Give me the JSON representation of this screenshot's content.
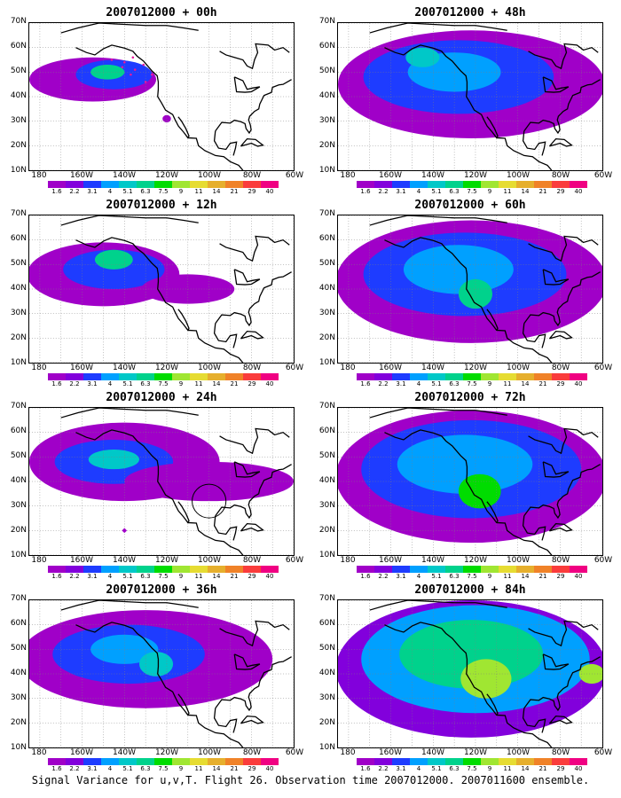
{
  "caption": "Signal Variance for u,v,T. Flight 26. Observation time 2007012000. 2007011600 ensemble.",
  "colors": {
    "land_outline": "#000000",
    "grid": "#7f7f7f",
    "circle": "#000000",
    "obs_marker": "#e8199b"
  },
  "chart_data": {
    "type": "heatmap",
    "axes": {
      "lon_ticks": [
        "180",
        "160W",
        "140W",
        "120W",
        "100W",
        "80W",
        "60W"
      ],
      "lat_ticks": [
        "10N",
        "20N",
        "30N",
        "40N",
        "50N",
        "60N",
        "70N"
      ],
      "lon_range": [
        -185,
        -60
      ],
      "lat_range": [
        10,
        70
      ],
      "grid": true
    },
    "colorbar": {
      "levels": [
        "1.6",
        "2.2",
        "3.1",
        "4",
        "5.1",
        "6.3",
        "7.5",
        "9",
        "11",
        "14",
        "21",
        "29",
        "40"
      ],
      "colors": [
        "#a000c8",
        "#8200dc",
        "#1e3cff",
        "#00a0ff",
        "#00c8c8",
        "#00d28c",
        "#00dc00",
        "#a0e632",
        "#e6dc32",
        "#e6af2d",
        "#f08228",
        "#fa3c3c",
        "#f00082"
      ]
    },
    "panels": [
      {
        "title": "2007012000 + 00h",
        "regions": [
          {
            "lon": -155,
            "lat": 47,
            "rx": 30,
            "ry": 9,
            "level": 0
          },
          {
            "lon": -145,
            "lat": 49,
            "rx": 18,
            "ry": 6,
            "level": 2
          },
          {
            "lon": -148,
            "lat": 50,
            "rx": 8,
            "ry": 3,
            "level": 5
          },
          {
            "lon": -120,
            "lat": 31,
            "rx": 2,
            "ry": 1.5,
            "level": 0
          }
        ],
        "obs_track": true
      },
      {
        "title": "2007012000 + 12h",
        "regions": [
          {
            "lon": -150,
            "lat": 46,
            "rx": 36,
            "ry": 13,
            "level": 0
          },
          {
            "lon": -145,
            "lat": 48,
            "rx": 24,
            "ry": 8,
            "level": 2
          },
          {
            "lon": -145,
            "lat": 52,
            "rx": 9,
            "ry": 4,
            "level": 5
          },
          {
            "lon": -110,
            "lat": 40,
            "rx": 22,
            "ry": 6,
            "level": 0
          }
        ]
      },
      {
        "title": "2007012000 + 24h",
        "regions": [
          {
            "lon": -140,
            "lat": 48,
            "rx": 45,
            "ry": 16,
            "level": 0
          },
          {
            "lon": -145,
            "lat": 48,
            "rx": 28,
            "ry": 9,
            "level": 2
          },
          {
            "lon": -145,
            "lat": 49,
            "rx": 12,
            "ry": 4,
            "level": 4
          },
          {
            "lon": -100,
            "lat": 40,
            "rx": 40,
            "ry": 8,
            "level": 0
          }
        ],
        "circle": {
          "lon": -100,
          "lat": 32,
          "r": 8
        },
        "marker": {
          "lon": -140,
          "lat": 20
        }
      },
      {
        "title": "2007012000 + 36h",
        "regions": [
          {
            "lon": -130,
            "lat": 46,
            "rx": 60,
            "ry": 20,
            "level": 0
          },
          {
            "lon": -138,
            "lat": 48,
            "rx": 36,
            "ry": 12,
            "level": 2
          },
          {
            "lon": -140,
            "lat": 50,
            "rx": 16,
            "ry": 6,
            "level": 3
          },
          {
            "lon": -125,
            "lat": 44,
            "rx": 8,
            "ry": 5,
            "level": 4
          }
        ]
      },
      {
        "title": "2007012000 + 48h",
        "regions": [
          {
            "lon": -122,
            "lat": 45,
            "rx": 63,
            "ry": 22,
            "level": 0
          },
          {
            "lon": -128,
            "lat": 48,
            "rx": 45,
            "ry": 15,
            "level": 2
          },
          {
            "lon": -130,
            "lat": 50,
            "rx": 22,
            "ry": 8,
            "level": 3
          },
          {
            "lon": -145,
            "lat": 56,
            "rx": 8,
            "ry": 4,
            "level": 4
          }
        ]
      },
      {
        "title": "2007012000 + 60h",
        "regions": [
          {
            "lon": -122,
            "lat": 43,
            "rx": 64,
            "ry": 25,
            "level": 0
          },
          {
            "lon": -125,
            "lat": 46,
            "rx": 48,
            "ry": 17,
            "level": 2
          },
          {
            "lon": -128,
            "lat": 48,
            "rx": 26,
            "ry": 10,
            "level": 3
          },
          {
            "lon": -120,
            "lat": 38,
            "rx": 8,
            "ry": 6,
            "level": 5
          }
        ]
      },
      {
        "title": "2007012000 + 72h",
        "regions": [
          {
            "lon": -122,
            "lat": 42,
            "rx": 64,
            "ry": 27,
            "level": 0
          },
          {
            "lon": -122,
            "lat": 45,
            "rx": 52,
            "ry": 20,
            "level": 2
          },
          {
            "lon": -125,
            "lat": 47,
            "rx": 32,
            "ry": 12,
            "level": 3
          },
          {
            "lon": -118,
            "lat": 36,
            "rx": 10,
            "ry": 7,
            "level": 6
          }
        ]
      },
      {
        "title": "2007012000 + 84h",
        "regions": [
          {
            "lon": -122,
            "lat": 42,
            "rx": 64,
            "ry": 28,
            "level": 1
          },
          {
            "lon": -120,
            "lat": 46,
            "rx": 54,
            "ry": 22,
            "level": 3
          },
          {
            "lon": -122,
            "lat": 48,
            "rx": 34,
            "ry": 14,
            "level": 5
          },
          {
            "lon": -115,
            "lat": 38,
            "rx": 12,
            "ry": 8,
            "level": 7
          },
          {
            "lon": -65,
            "lat": 40,
            "rx": 6,
            "ry": 4,
            "level": 7
          }
        ]
      }
    ]
  }
}
